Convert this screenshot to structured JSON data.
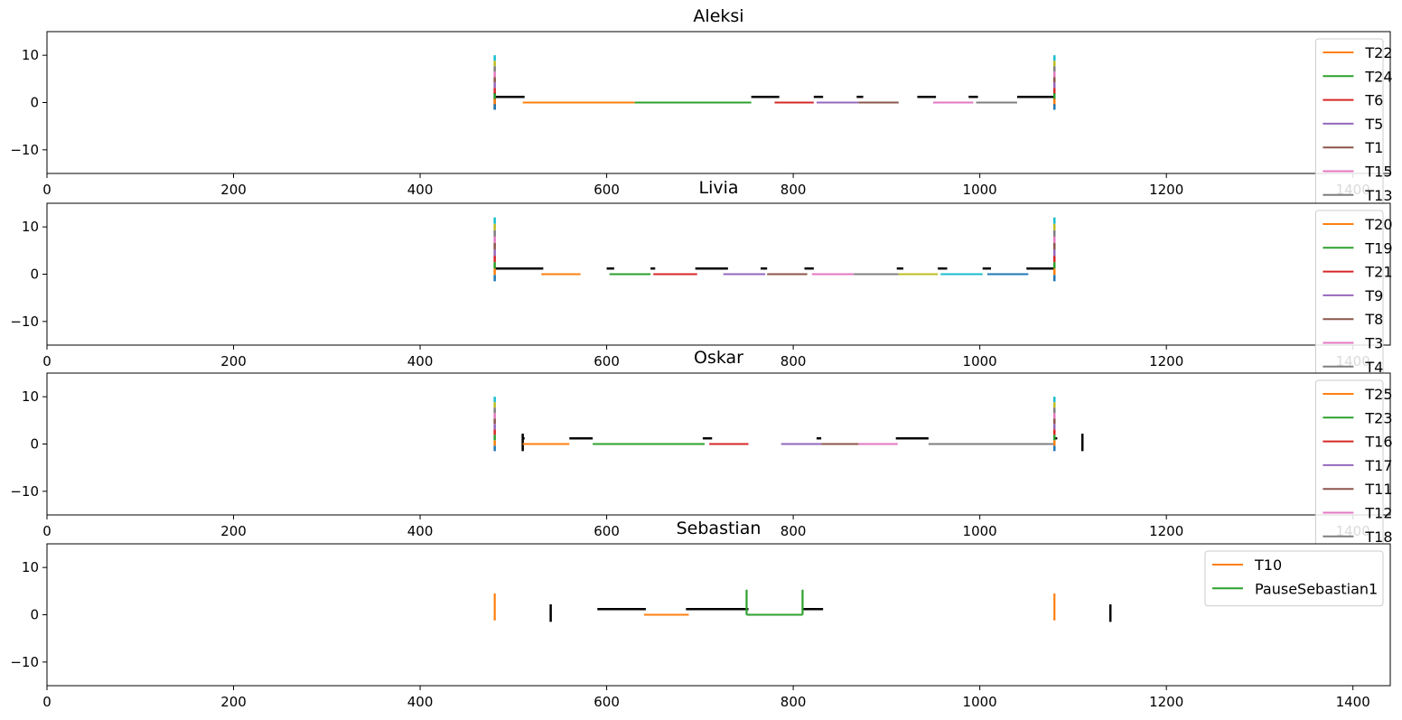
{
  "chart_data": [
    {
      "type": "line",
      "title": "Aleksi",
      "xlim": [
        0,
        1440
      ],
      "ylim": [
        -15,
        15
      ],
      "xticks": [
        0,
        200,
        400,
        600,
        800,
        1000,
        1200,
        1400
      ],
      "xtick_labels": [
        "0",
        "200",
        "400",
        "600",
        "800",
        "1000",
        "1200",
        "1400"
      ],
      "yticks": [
        10,
        0,
        -10
      ],
      "ytick_labels": [
        "10",
        "0",
        "−10"
      ],
      "legend_position": "top-right",
      "series": [
        {
          "name": "T22",
          "color": "#ff7f0e",
          "x": [
            510,
            630
          ],
          "y": [
            0,
            0
          ]
        },
        {
          "name": "T24",
          "color": "#2ca02c",
          "x": [
            630,
            755
          ],
          "y": [
            0,
            0
          ]
        },
        {
          "name": "T6",
          "color": "#d62728",
          "x": [
            780,
            822
          ],
          "y": [
            0,
            0
          ]
        },
        {
          "name": "T5",
          "color": "#9467bd",
          "x": [
            825,
            870
          ],
          "y": [
            0,
            0
          ]
        },
        {
          "name": "T1",
          "color": "#8c564b",
          "x": [
            870,
            913
          ],
          "y": [
            0,
            0
          ]
        },
        {
          "name": "T15",
          "color": "#e377c2",
          "x": [
            950,
            993
          ],
          "y": [
            0,
            0
          ]
        },
        {
          "name": "T13",
          "color": "#7f7f7f",
          "x": [
            996,
            1040
          ],
          "y": [
            0,
            0
          ]
        }
      ],
      "markers": [
        {
          "x": 480,
          "y0": -1.5,
          "y1": 10,
          "color": "multi"
        },
        {
          "x": 1080,
          "y0": -1.5,
          "y1": 10,
          "color": "multi"
        }
      ],
      "black_segments": [
        [
          480,
          512
        ],
        [
          755,
          785
        ],
        [
          822,
          832
        ],
        [
          868,
          875
        ],
        [
          933,
          953
        ],
        [
          988,
          998
        ],
        [
          1040,
          1080
        ]
      ],
      "black_ticks": [
        480,
        1080
      ]
    },
    {
      "type": "line",
      "title": "Livia",
      "xlim": [
        0,
        1440
      ],
      "ylim": [
        -15,
        15
      ],
      "xticks": [
        0,
        200,
        400,
        600,
        800,
        1000,
        1200,
        1400
      ],
      "xtick_labels": [
        "0",
        "200",
        "400",
        "600",
        "800",
        "1000",
        "1200",
        "1400"
      ],
      "yticks": [
        10,
        0,
        -10
      ],
      "ytick_labels": [
        "10",
        "0",
        "−10"
      ],
      "legend_position": "top-right",
      "series": [
        {
          "name": "T20",
          "color": "#ff7f0e",
          "x": [
            530,
            572
          ],
          "y": [
            0,
            0
          ]
        },
        {
          "name": "T19",
          "color": "#2ca02c",
          "x": [
            603,
            647
          ],
          "y": [
            0,
            0
          ]
        },
        {
          "name": "T21",
          "color": "#d62728",
          "x": [
            650,
            697
          ],
          "y": [
            0,
            0
          ]
        },
        {
          "name": "T9",
          "color": "#9467bd",
          "x": [
            725,
            770
          ],
          "y": [
            0,
            0
          ]
        },
        {
          "name": "T8",
          "color": "#8c564b",
          "x": [
            772,
            815
          ],
          "y": [
            0,
            0
          ]
        },
        {
          "name": "T3",
          "color": "#e377c2",
          "x": [
            820,
            865
          ],
          "y": [
            0,
            0
          ]
        },
        {
          "name": "T4",
          "color": "#7f7f7f",
          "x": [
            865,
            913
          ],
          "y": [
            0,
            0
          ]
        },
        {
          "name": "",
          "color": "#bcbd22",
          "x": [
            913,
            955
          ],
          "y": [
            0,
            0
          ]
        },
        {
          "name": "",
          "color": "#17becf",
          "x": [
            958,
            1003
          ],
          "y": [
            0,
            0
          ]
        },
        {
          "name": "",
          "color": "#1f77b4",
          "x": [
            1008,
            1052
          ],
          "y": [
            0,
            0
          ]
        }
      ],
      "markers": [
        {
          "x": 480,
          "y0": -1.5,
          "y1": 12,
          "color": "multi"
        },
        {
          "x": 1080,
          "y0": -1.5,
          "y1": 12,
          "color": "multi"
        }
      ],
      "black_segments": [
        [
          480,
          532
        ],
        [
          600,
          608
        ],
        [
          647,
          652
        ],
        [
          695,
          730
        ],
        [
          765,
          772
        ],
        [
          812,
          822
        ],
        [
          911,
          918
        ],
        [
          955,
          965
        ],
        [
          1003,
          1012
        ],
        [
          1050,
          1080
        ]
      ],
      "black_ticks": []
    },
    {
      "type": "line",
      "title": "Oskar",
      "xlim": [
        0,
        1440
      ],
      "ylim": [
        -15,
        15
      ],
      "xticks": [
        0,
        200,
        400,
        600,
        800,
        1000,
        1200,
        1400
      ],
      "xtick_labels": [
        "0",
        "200",
        "400",
        "600",
        "800",
        "1000",
        "1200",
        "1400"
      ],
      "yticks": [
        10,
        0,
        -10
      ],
      "ytick_labels": [
        "10",
        "0",
        "−10"
      ],
      "legend_position": "top-right",
      "series": [
        {
          "name": "T25",
          "color": "#ff7f0e",
          "x": [
            510,
            560
          ],
          "y": [
            0,
            0
          ]
        },
        {
          "name": "T23",
          "color": "#2ca02c",
          "x": [
            585,
            705
          ],
          "y": [
            0,
            0
          ]
        },
        {
          "name": "T16",
          "color": "#d62728",
          "x": [
            710,
            752
          ],
          "y": [
            0,
            0
          ]
        },
        {
          "name": "T17",
          "color": "#9467bd",
          "x": [
            787,
            830
          ],
          "y": [
            0,
            0
          ]
        },
        {
          "name": "T11",
          "color": "#8c564b",
          "x": [
            830,
            870
          ],
          "y": [
            0,
            0
          ]
        },
        {
          "name": "T12",
          "color": "#e377c2",
          "x": [
            870,
            912
          ],
          "y": [
            0,
            0
          ]
        },
        {
          "name": "T18",
          "color": "#7f7f7f",
          "x": [
            945,
            1080
          ],
          "y": [
            0,
            0
          ]
        }
      ],
      "markers": [
        {
          "x": 480,
          "y0": -1.5,
          "y1": 10,
          "color": "multi"
        },
        {
          "x": 1080,
          "y0": -1.5,
          "y1": 10,
          "color": "multi"
        }
      ],
      "black_segments": [
        [
          510,
          512
        ],
        [
          560,
          585
        ],
        [
          703,
          713
        ],
        [
          825,
          830
        ],
        [
          910,
          945
        ],
        [
          1080,
          1083
        ]
      ],
      "black_ticks": [
        510,
        1110
      ]
    },
    {
      "type": "line",
      "title": "Sebastian",
      "xlim": [
        0,
        1440
      ],
      "ylim": [
        -15,
        15
      ],
      "xticks": [
        0,
        200,
        400,
        600,
        800,
        1000,
        1200,
        1400
      ],
      "xtick_labels": [
        "0",
        "200",
        "400",
        "600",
        "800",
        "1000",
        "1200",
        "1400"
      ],
      "yticks": [
        10,
        0,
        -10
      ],
      "ytick_labels": [
        "10",
        "0",
        "−10"
      ],
      "legend_position": "top-right",
      "series": [
        {
          "name": "T10",
          "color": "#ff7f0e",
          "x": [
            640,
            688
          ],
          "y": [
            0,
            0
          ]
        },
        {
          "name": "PauseSebastian1",
          "color": "#2ca02c",
          "x": [
            750,
            810
          ],
          "y": [
            0,
            0
          ]
        }
      ],
      "markers": [
        {
          "x": 480,
          "y0": -1.2,
          "y1": 4.5,
          "color": "#ff7f0e"
        },
        {
          "x": 1080,
          "y0": -1.2,
          "y1": 4.5,
          "color": "#ff7f0e"
        },
        {
          "x": 750,
          "y0": 0,
          "y1": 5.3,
          "color": "#2ca02c"
        },
        {
          "x": 810,
          "y0": 0,
          "y1": 5.3,
          "color": "#2ca02c"
        }
      ],
      "black_segments": [
        [
          590,
          642
        ],
        [
          685,
          752
        ],
        [
          810,
          832
        ]
      ],
      "black_ticks": [
        540,
        1140
      ]
    }
  ]
}
